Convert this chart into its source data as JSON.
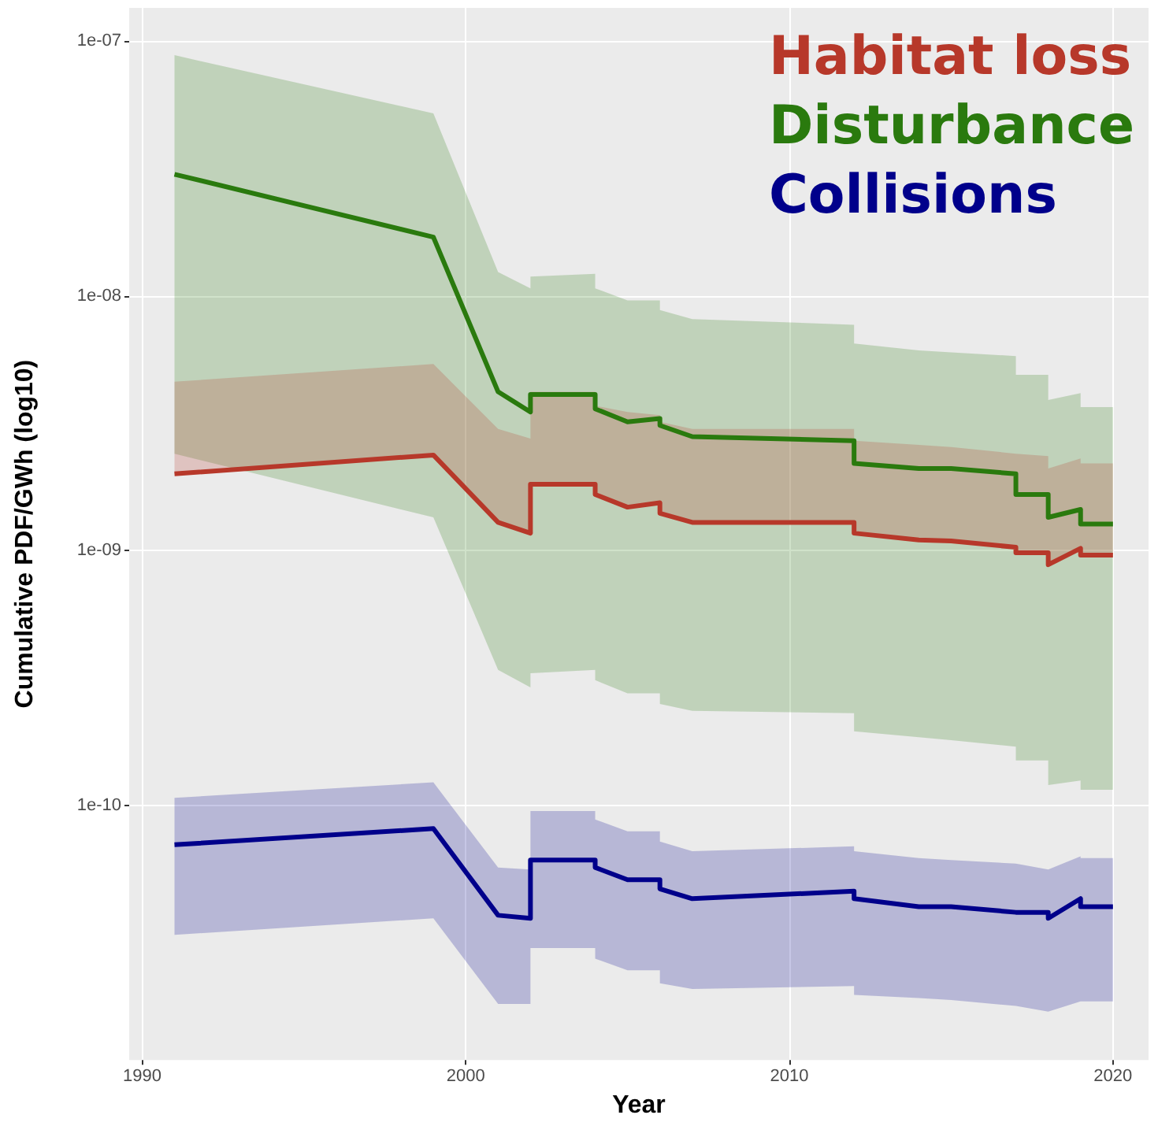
{
  "chart_data": {
    "type": "line",
    "xlabel": "Year",
    "ylabel": "Cumulative PDF/GWh (log10)",
    "log": "y",
    "grid": true,
    "legend": "top right",
    "marker": "none",
    "line_style": "solid",
    "xlim": [
      1989.6,
      2021.1
    ],
    "xticks": [
      1990,
      2000,
      2010,
      2020
    ],
    "ylim": [
      1e-11,
      1.35e-07
    ],
    "yticks": [
      {
        "value": 1e-10,
        "label": "1e-10"
      },
      {
        "value": 1e-09,
        "label": "1e-09"
      },
      {
        "value": 1e-08,
        "label": "1e-08"
      },
      {
        "value": 1e-07,
        "label": "1e-07"
      }
    ],
    "x": [
      1991,
      1999,
      2001,
      2002,
      2002,
      2004,
      2004,
      2005,
      2006,
      2006,
      2007,
      2012,
      2012,
      2014,
      2015,
      2017,
      2017,
      2018,
      2018,
      2019,
      2019,
      2020
    ],
    "series": [
      {
        "name": "Disturbance",
        "color": "#2a7a0e",
        "values": [
          3e-08,
          1.7e-08,
          4.2e-09,
          3.5e-09,
          4.1e-09,
          4.1e-09,
          3.6e-09,
          3.2e-09,
          3.3e-09,
          3.1e-09,
          2.8e-09,
          2.7e-09,
          2.2e-09,
          2.1e-09,
          2.1e-09,
          2e-09,
          1.66e-09,
          1.66e-09,
          1.35e-09,
          1.45e-09,
          1.27e-09,
          1.27e-09
        ],
        "upper": [
          8.8e-08,
          5.2e-08,
          1.24e-08,
          1.07e-08,
          1.19e-08,
          1.22e-08,
          1.07e-08,
          9.6e-09,
          9.6e-09,
          8.8e-09,
          8.1e-09,
          7.7e-09,
          6.5e-09,
          6.1e-09,
          6e-09,
          5.8e-09,
          4.9e-09,
          4.9e-09,
          3.9e-09,
          4.15e-09,
          3.66e-09,
          3.66e-09
        ],
        "lower": [
          2.4e-09,
          1.35e-09,
          3.4e-10,
          2.9e-10,
          3.3e-10,
          3.4e-10,
          3.1e-10,
          2.75e-10,
          2.75e-10,
          2.5e-10,
          2.35e-10,
          2.3e-10,
          1.95e-10,
          1.85e-10,
          1.8e-10,
          1.7e-10,
          1.5e-10,
          1.5e-10,
          1.2e-10,
          1.25e-10,
          1.15e-10,
          1.15e-10
        ]
      },
      {
        "name": "Habitat loss",
        "color": "#b7382a",
        "values": [
          2e-09,
          2.37e-09,
          1.29e-09,
          1.17e-09,
          1.82e-09,
          1.82e-09,
          1.66e-09,
          1.48e-09,
          1.54e-09,
          1.4e-09,
          1.29e-09,
          1.29e-09,
          1.17e-09,
          1.1e-09,
          1.09e-09,
          1.03e-09,
          9.8e-10,
          9.8e-10,
          8.8e-10,
          1.02e-09,
          9.6e-10,
          9.6e-10
        ],
        "upper": [
          4.6e-09,
          5.4e-09,
          3e-09,
          2.75e-09,
          4.2e-09,
          4.2e-09,
          3.7e-09,
          3.5e-09,
          3.4e-09,
          3.2e-09,
          3e-09,
          3e-09,
          2.7e-09,
          2.6e-09,
          2.55e-09,
          2.4e-09,
          2.4e-09,
          2.35e-09,
          2.1e-09,
          2.3e-09,
          2.2e-09,
          2.2e-09
        ],
        "lower": [
          2e-09,
          2.37e-09,
          1.29e-09,
          1.17e-09,
          1.82e-09,
          1.82e-09,
          1.66e-09,
          1.48e-09,
          1.54e-09,
          1.4e-09,
          1.29e-09,
          1.29e-09,
          1.17e-09,
          1.1e-09,
          1.09e-09,
          1.03e-09,
          9.8e-10,
          9.8e-10,
          8.8e-10,
          1.02e-09,
          9.6e-10,
          9.6e-10
        ]
      },
      {
        "name": "Collisions",
        "color": "#00008b",
        "values": [
          7e-11,
          8.1e-11,
          3.7e-11,
          3.6e-11,
          6.1e-11,
          6.1e-11,
          5.7e-11,
          5.1e-11,
          5.1e-11,
          4.7e-11,
          4.3e-11,
          4.6e-11,
          4.3e-11,
          4e-11,
          4e-11,
          3.8e-11,
          3.8e-11,
          3.8e-11,
          3.6e-11,
          4.3e-11,
          4e-11,
          4e-11
        ],
        "upper": [
          1.07e-10,
          1.23e-10,
          5.7e-11,
          5.6e-11,
          9.5e-11,
          9.5e-11,
          8.8e-11,
          7.9e-11,
          7.9e-11,
          7.2e-11,
          6.6e-11,
          6.9e-11,
          6.6e-11,
          6.2e-11,
          6.1e-11,
          5.9e-11,
          5.9e-11,
          5.6e-11,
          5.6e-11,
          6.3e-11,
          6.2e-11,
          6.2e-11
        ],
        "lower": [
          3.1e-11,
          3.6e-11,
          1.66e-11,
          1.66e-11,
          2.75e-11,
          2.75e-11,
          2.5e-11,
          2.25e-11,
          2.25e-11,
          2e-11,
          1.9e-11,
          1.95e-11,
          1.8e-11,
          1.75e-11,
          1.72e-11,
          1.63e-11,
          1.63e-11,
          1.55e-11,
          1.55e-11,
          1.7e-11,
          1.7e-11,
          1.7e-11
        ]
      }
    ]
  }
}
